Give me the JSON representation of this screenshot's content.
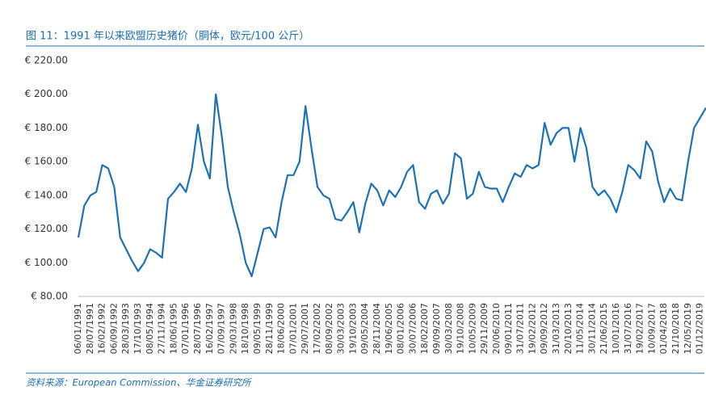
{
  "chart_data": {
    "type": "line",
    "title": "图 11：1991 年以来欧盟历史猪价（胴体，欧元/100 公斤）",
    "source": "资料来源：European Commission、华金证券研究所",
    "categories": [
      "06/01/1991",
      null,
      "28/07/1991",
      null,
      "16/02/1992",
      null,
      "06/09/1992",
      null,
      "28/03/1993",
      null,
      "17/10/1993",
      null,
      "08/05/1994",
      null,
      "27/11/1994",
      null,
      "18/06/1995",
      null,
      "07/01/1996",
      null,
      "28/07/1996",
      null,
      "16/02/1997",
      null,
      "07/09/1997",
      null,
      "29/03/1998",
      null,
      "18/10/1998",
      null,
      "09/05/1999",
      null,
      "28/11/1999",
      null,
      "18/06/2000",
      null,
      "07/01/2001",
      null,
      "29/07/2001",
      null,
      "17/02/2002",
      null,
      "08/09/2002",
      null,
      "30/03/2003",
      null,
      "19/10/2003",
      null,
      "09/05/2004",
      null,
      "28/11/2004",
      null,
      "19/06/2005",
      null,
      "08/01/2006",
      null,
      "30/07/2006",
      null,
      "18/02/2007",
      null,
      "09/09/2007",
      null,
      "30/03/2008",
      null,
      "19/10/2008",
      null,
      "10/05/2009",
      null,
      "29/11/2009",
      null,
      "20/06/2010",
      null,
      "09/01/2011",
      null,
      "31/07/2011",
      null,
      "19/02/2012",
      null,
      "09/09/2012",
      null,
      "31/03/2013",
      null,
      "20/10/2013",
      null,
      "11/05/2014",
      null,
      "30/11/2014",
      null,
      "21/06/2015",
      null,
      "10/01/2016",
      null,
      "31/07/2016",
      null,
      "19/02/2017",
      null,
      "10/09/2017",
      null,
      "01/04/2018",
      null,
      "21/10/2018",
      null,
      "12/05/2019",
      null,
      "01/12/2019",
      null
    ],
    "series": [
      {
        "color": "#1a73ba",
        "values": [
          115,
          134,
          140,
          142,
          158,
          156,
          145,
          115,
          108,
          101,
          95,
          100,
          108,
          106,
          103,
          138,
          142,
          147,
          142,
          156,
          182,
          160,
          150,
          200,
          175,
          145,
          130,
          117,
          100,
          92,
          106,
          120,
          121,
          115,
          136,
          152,
          152,
          160,
          193,
          168,
          145,
          140,
          138,
          126,
          125,
          130,
          136,
          118,
          135,
          147,
          143,
          134,
          143,
          139,
          145,
          154,
          158,
          136,
          132,
          141,
          143,
          135,
          141,
          165,
          162,
          138,
          141,
          154,
          145,
          144,
          144,
          136,
          145,
          153,
          151,
          158,
          156,
          158,
          183,
          170,
          177,
          180,
          180,
          160,
          180,
          168,
          145,
          140,
          143,
          138,
          130,
          142,
          158,
          155,
          150,
          172,
          166,
          148,
          136,
          144,
          138,
          137,
          160,
          180,
          186,
          192
        ]
      }
    ],
    "ylim": [
      80,
      220
    ],
    "yticks": [
      {
        "value": 80,
        "label": "€ 80.00"
      },
      {
        "value": 100,
        "label": "€ 100.00"
      },
      {
        "value": 120,
        "label": "€ 120.00"
      },
      {
        "value": 140,
        "label": "€ 140.00"
      },
      {
        "value": 160,
        "label": "€ 160.00"
      },
      {
        "value": 180,
        "label": "€ 180.00"
      },
      {
        "value": 200,
        "label": "€ 200.00"
      },
      {
        "value": 220,
        "label": "€ 220.00"
      }
    ],
    "grid": false
  }
}
